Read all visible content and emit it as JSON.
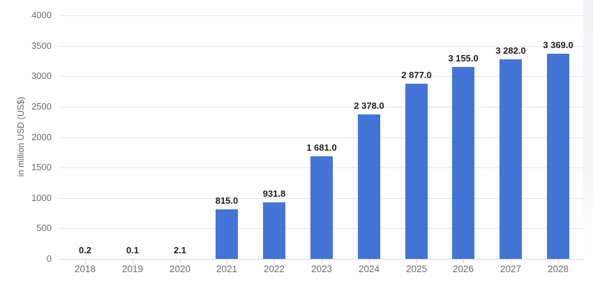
{
  "chart_data": {
    "type": "bar",
    "title": "",
    "xlabel": "",
    "ylabel": "in million USD (US$)",
    "ylim": [
      0,
      4000
    ],
    "ytick_step": 500,
    "grid": true,
    "legend": false,
    "categories": [
      "2018",
      "2019",
      "2020",
      "2021",
      "2022",
      "2023",
      "2024",
      "2025",
      "2026",
      "2027",
      "2028"
    ],
    "values": [
      0.2,
      0.1,
      2.1,
      815.0,
      931.8,
      1681.0,
      2378.0,
      2877.0,
      3155.0,
      3282.0,
      3369.0
    ],
    "value_labels": [
      "0.2",
      "0.1",
      "2.1",
      "815.0",
      "931.8",
      "1 681.0",
      "2 378.0",
      "2 877.0",
      "3 155.0",
      "3 282.0",
      "3 369.0"
    ],
    "ytick_labels": [
      "0",
      "500",
      "1000",
      "1500",
      "2000",
      "2500",
      "3000",
      "3500",
      "4000"
    ],
    "colors": {
      "bar": "#4374d6",
      "grid": "#e7e7e7",
      "axis_line": "#ccd6eb",
      "tick": "#ccd6eb",
      "axis_text": "#6b6b6b",
      "data_label": "#1f1f1f"
    }
  }
}
